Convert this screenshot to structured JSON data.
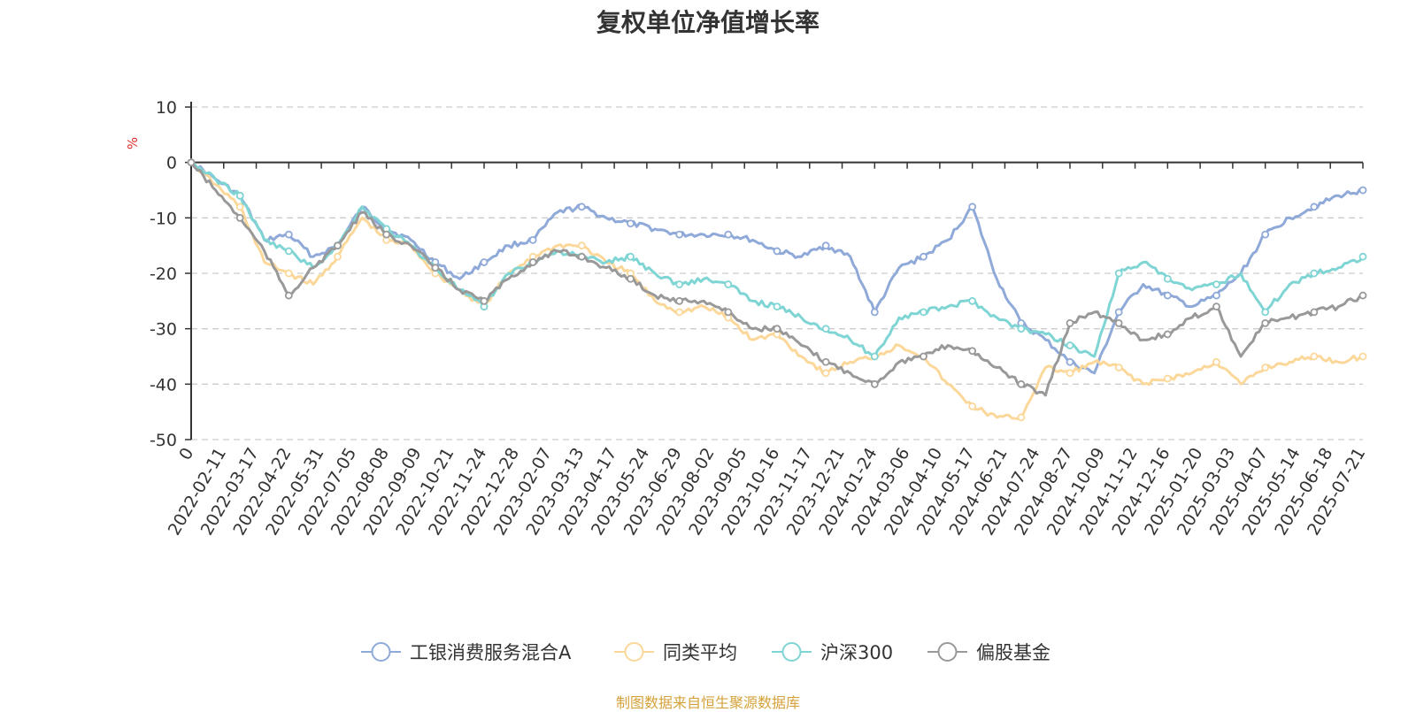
{
  "chart_data": {
    "type": "line",
    "title": "复权单位净值增长率",
    "ylabel": "%",
    "ylim": [
      -50,
      10
    ],
    "yticks": [
      10,
      0,
      -10,
      -20,
      -30,
      -40,
      -50
    ],
    "grid": true,
    "legend_position": "bottom",
    "xticks": [
      "0",
      "2022-02-11",
      "2022-03-17",
      "2022-04-22",
      "2022-05-31",
      "2022-07-05",
      "2022-08-08",
      "2022-09-09",
      "2022-10-21",
      "2022-11-24",
      "2022-12-28",
      "2023-02-07",
      "2023-03-13",
      "2023-04-17",
      "2023-05-24",
      "2023-06-29",
      "2023-08-02",
      "2023-09-05",
      "2023-10-16",
      "2023-11-17",
      "2023-12-21",
      "2024-01-24",
      "2024-03-06",
      "2024-04-10",
      "2024-05-17",
      "2024-06-21",
      "2024-07-24",
      "2024-08-27",
      "2024-10-09",
      "2024-11-12",
      "2024-12-16",
      "2025-01-20",
      "2025-03-03",
      "2025-04-07",
      "2025-05-14",
      "2025-06-18",
      "2025-07-21"
    ],
    "series": [
      {
        "name": "工银消费服务混合A",
        "color": "#8fa9d8",
        "values": [
          0,
          -3,
          -6,
          -14,
          -13,
          -17,
          -15,
          -8,
          -12,
          -14,
          -18,
          -21,
          -18,
          -15,
          -14,
          -9,
          -8,
          -10,
          -11,
          -12,
          -13,
          -13,
          -13,
          -14,
          -16,
          -17,
          -15,
          -17,
          -27,
          -19,
          -17,
          -14,
          -8,
          -21,
          -29,
          -32,
          -36,
          -38,
          -27,
          -22,
          -24,
          -26,
          -24,
          -20,
          -13,
          -10,
          -8,
          -6,
          -5
        ]
      },
      {
        "name": "同类平均",
        "color": "#fbd89a",
        "values": [
          0,
          -4,
          -8,
          -18,
          -20,
          -22,
          -17,
          -10,
          -14,
          -15,
          -20,
          -23,
          -26,
          -20,
          -17,
          -15,
          -15,
          -18,
          -20,
          -25,
          -27,
          -26,
          -28,
          -32,
          -31,
          -35,
          -38,
          -36,
          -35,
          -33,
          -35,
          -40,
          -44,
          -46,
          -46,
          -37,
          -38,
          -36,
          -37,
          -40,
          -39,
          -38,
          -36,
          -40,
          -37,
          -36,
          -35,
          -36,
          -35
        ]
      },
      {
        "name": "沪深300",
        "color": "#7fd4d4",
        "values": [
          0,
          -3,
          -6,
          -14,
          -16,
          -19,
          -15,
          -8,
          -12,
          -15,
          -19,
          -23,
          -26,
          -20,
          -18,
          -16,
          -17,
          -18,
          -17,
          -20,
          -22,
          -21,
          -22,
          -25,
          -26,
          -28,
          -30,
          -32,
          -35,
          -28,
          -27,
          -26,
          -25,
          -28,
          -30,
          -31,
          -33,
          -35,
          -20,
          -18,
          -21,
          -23,
          -22,
          -20,
          -27,
          -22,
          -20,
          -19,
          -17
        ]
      },
      {
        "name": "偏股基金",
        "color": "#999999",
        "values": [
          0,
          -5,
          -10,
          -16,
          -24,
          -19,
          -15,
          -9,
          -13,
          -15,
          -19,
          -23,
          -25,
          -21,
          -18,
          -16,
          -17,
          -19,
          -21,
          -24,
          -25,
          -25,
          -27,
          -30,
          -30,
          -33,
          -36,
          -38,
          -40,
          -36,
          -35,
          -33,
          -34,
          -37,
          -40,
          -42,
          -29,
          -27,
          -29,
          -32,
          -31,
          -28,
          -26,
          -35,
          -29,
          -28,
          -27,
          -26,
          -24
        ]
      }
    ]
  },
  "credit": "制图数据来自恒生聚源数据库"
}
